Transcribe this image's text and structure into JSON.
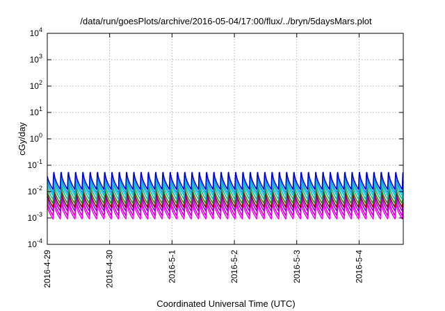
{
  "chart_data": {
    "type": "line",
    "title": "/data/run/goesPlots/archive/2016-05-04/17:00/flux/../bryn/5daysMars.plot",
    "xlabel": "Coordinated Universal Time (UTC)",
    "ylabel": "cGy/day",
    "yscale": "log",
    "ylim": [
      0.0001,
      10000
    ],
    "xlim": [
      "2016-04-29T00:00",
      "2016-05-04T17:00"
    ],
    "grid": true,
    "x_ticks": [
      {
        "value": "2016-04-29T00:00",
        "label": "2016-4-29"
      },
      {
        "value": "2016-04-30T00:00",
        "label": "2016-4-30"
      },
      {
        "value": "2016-05-01T00:00",
        "label": "2016-5-1"
      },
      {
        "value": "2016-05-02T00:00",
        "label": "2016-5-2"
      },
      {
        "value": "2016-05-03T00:00",
        "label": "2016-5-3"
      },
      {
        "value": "2016-05-04T00:00",
        "label": "2016-5-4"
      }
    ],
    "y_ticks": [
      {
        "value": 0.0001,
        "mantissa": "10",
        "exponent": "-4"
      },
      {
        "value": 0.001,
        "mantissa": "10",
        "exponent": "-3"
      },
      {
        "value": 0.01,
        "mantissa": "10",
        "exponent": "-2"
      },
      {
        "value": 0.1,
        "mantissa": "10",
        "exponent": "-1"
      },
      {
        "value": 1,
        "mantissa": "10",
        "exponent": "0"
      },
      {
        "value": 10,
        "mantissa": "10",
        "exponent": "1"
      },
      {
        "value": 100,
        "mantissa": "10",
        "exponent": "2"
      },
      {
        "value": 1000,
        "mantissa": "10",
        "exponent": "3"
      },
      {
        "value": 10000,
        "mantissa": "10",
        "exponent": "4"
      }
    ],
    "pattern": {
      "period_hours": 2.8,
      "peak_offset_hours": 0.5
    },
    "series": [
      {
        "color": "#ff00ff",
        "peak": 0.004,
        "trough": 0.0009
      },
      {
        "color": "#cc00cc",
        "peak": 0.006,
        "trough": 0.0012
      },
      {
        "color": "#9400d3",
        "peak": 0.009,
        "trough": 0.0018
      },
      {
        "color": "#8b0000",
        "peak": 0.012,
        "trough": 0.0025
      },
      {
        "color": "#228b22",
        "peak": 0.016,
        "trough": 0.0035
      },
      {
        "color": "#20b2aa",
        "peak": 0.025,
        "trough": 0.005
      },
      {
        "color": "#00ced1",
        "peak": 0.035,
        "trough": 0.007
      },
      {
        "color": "#1e90ff",
        "peak": 0.045,
        "trough": 0.009
      },
      {
        "color": "#0000cd",
        "peak": 0.06,
        "trough": 0.012
      }
    ]
  }
}
